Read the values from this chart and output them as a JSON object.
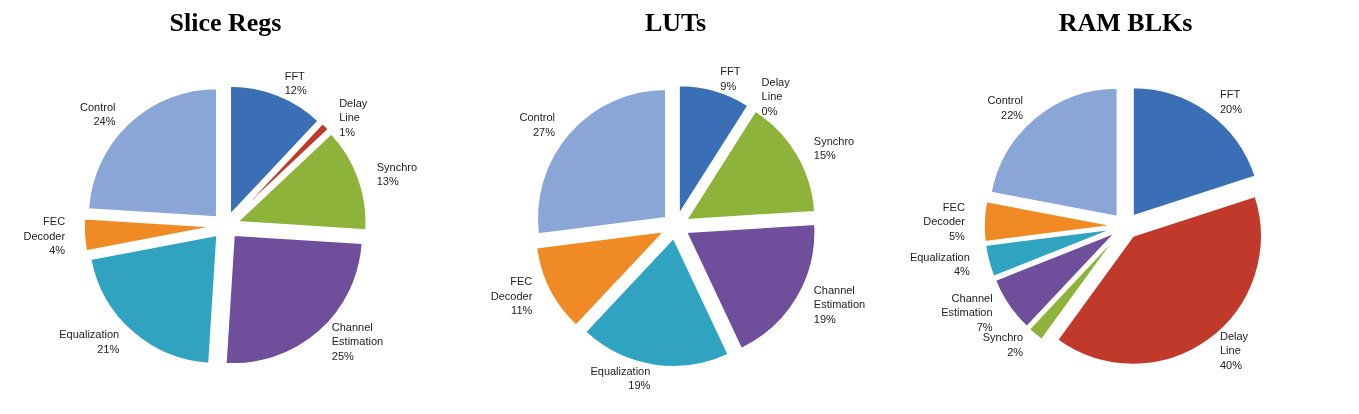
{
  "chart_data": [
    {
      "type": "pie",
      "title": "Slice Regs",
      "categories": [
        "FFT",
        "Delay Line",
        "Synchro",
        "Channel Estimation",
        "Equalization",
        "FEC Decoder",
        "Control"
      ],
      "values": [
        12,
        1,
        13,
        25,
        21,
        4,
        24
      ],
      "value_labels": [
        "12%",
        "1%",
        "13%",
        "25%",
        "21%",
        "4%",
        "24%"
      ],
      "colors": [
        "#3a6fb5",
        "#c0392b",
        "#8db33a",
        "#6f4e9c",
        "#2fa3bf",
        "#f08a24",
        "#8aa6d6"
      ]
    },
    {
      "type": "pie",
      "title": "LUTs",
      "categories": [
        "FFT",
        "Delay Line",
        "Synchro",
        "Channel Estimation",
        "Equalization",
        "FEC Decoder",
        "Control"
      ],
      "values": [
        9,
        0,
        15,
        19,
        19,
        11,
        27
      ],
      "value_labels": [
        "9%",
        "0%",
        "15%",
        "19%",
        "19%",
        "11%",
        "27%"
      ],
      "colors": [
        "#3a6fb5",
        "#c0392b",
        "#8db33a",
        "#6f4e9c",
        "#2fa3bf",
        "#f08a24",
        "#8aa6d6"
      ]
    },
    {
      "type": "pie",
      "title": "RAM BLKs",
      "categories": [
        "FFT",
        "Delay Line",
        "Synchro",
        "Channel Estimation",
        "Equalization",
        "FEC Decoder",
        "Control"
      ],
      "values": [
        20,
        40,
        2,
        7,
        4,
        5,
        22
      ],
      "value_labels": [
        "20%",
        "40%",
        "2%",
        "7%",
        "4%",
        "5%",
        "22%"
      ],
      "colors": [
        "#3a6fb5",
        "#c0392b",
        "#8db33a",
        "#6f4e9c",
        "#2fa3bf",
        "#f08a24",
        "#8aa6d6"
      ]
    }
  ]
}
